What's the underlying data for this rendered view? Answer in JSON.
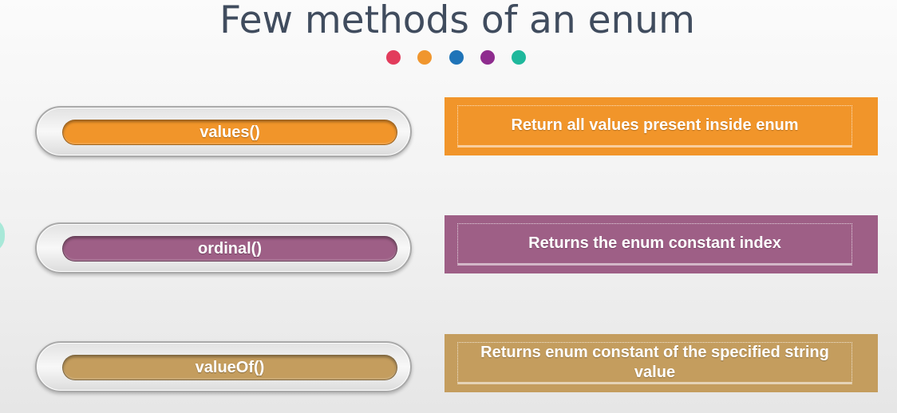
{
  "slide": {
    "title": "Few methods of an enum"
  },
  "dots": [
    {
      "name": "red-dot",
      "color": "#e23c5c"
    },
    {
      "name": "orange-dot",
      "color": "#f0962e"
    },
    {
      "name": "blue-dot",
      "color": "#1f74b8"
    },
    {
      "name": "purple-dot",
      "color": "#8e2c8e"
    },
    {
      "name": "teal-dot",
      "color": "#1fb89c"
    }
  ],
  "methods": [
    {
      "method": "values()",
      "description": "Return all values present inside enum",
      "color": "#f1952a"
    },
    {
      "method": "ordinal()",
      "description": "Returns the enum constant index",
      "color": "#9e5f86"
    },
    {
      "method": "valueOf()",
      "description": "Returns enum constant of the specified string value",
      "color": "#c49d5e"
    }
  ]
}
